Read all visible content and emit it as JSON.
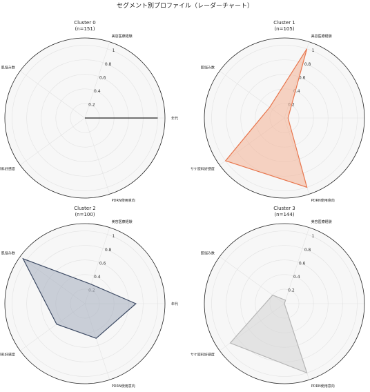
{
  "figure": {
    "title": "セグメント別プロファイル（レーダーチャート）"
  },
  "chart_data": [
    {
      "type": "radar",
      "title": "Cluster 0",
      "subtitle": "(n=151)",
      "axes": [
        "年代",
        "美容医療経験",
        "肌悩み数",
        "サケ原料好感度",
        "PDRN使用意向"
      ],
      "values": [
        1.0,
        0.0,
        0.0,
        0.0,
        0.0
      ],
      "rticks": [
        0.2,
        0.4,
        0.6,
        0.8,
        1.0
      ],
      "rlim": [
        0,
        1.1
      ],
      "color": "#222222",
      "fill": "#222222",
      "fill_opacity": 0.1
    },
    {
      "type": "radar",
      "title": "Cluster 1",
      "subtitle": "(n=105)",
      "axes": [
        "年代",
        "美容医療経験",
        "肌悩み数",
        "サケ原料好感度",
        "PDRN使用意向"
      ],
      "values": [
        0.05,
        1.0,
        0.25,
        1.0,
        1.0
      ],
      "rticks": [
        0.2,
        0.4,
        0.6,
        0.8,
        1.0
      ],
      "rlim": [
        0,
        1.1
      ],
      "color": "#e8764d",
      "fill": "#f4b89d",
      "fill_opacity": 0.6
    },
    {
      "type": "radar",
      "title": "Cluster 2",
      "subtitle": "(n=100)",
      "axes": [
        "年代",
        "美容医療経験",
        "肌悩み数",
        "サケ原料好感度",
        "PDRN使用意向"
      ],
      "values": [
        0.7,
        0.28,
        1.05,
        0.48,
        0.5
      ],
      "rticks": [
        0.2,
        0.4,
        0.6,
        0.8,
        1.0
      ],
      "rlim": [
        0,
        1.1
      ],
      "color": "#3d4a63",
      "fill": "#aab2c2",
      "fill_opacity": 0.6
    },
    {
      "type": "radar",
      "title": "Cluster 3",
      "subtitle": "(n=144)",
      "axes": [
        "年代",
        "美容医療経験",
        "肌悩み数",
        "サケ原料好感度",
        "PDRN使用意向"
      ],
      "values": [
        0.0,
        0.05,
        0.2,
        0.92,
        1.0
      ],
      "rticks": [
        0.2,
        0.4,
        0.6,
        0.8,
        1.0
      ],
      "rlim": [
        0,
        1.1
      ],
      "color": "#b5b5b5",
      "fill": "#d5d5d5",
      "fill_opacity": 0.6
    }
  ]
}
